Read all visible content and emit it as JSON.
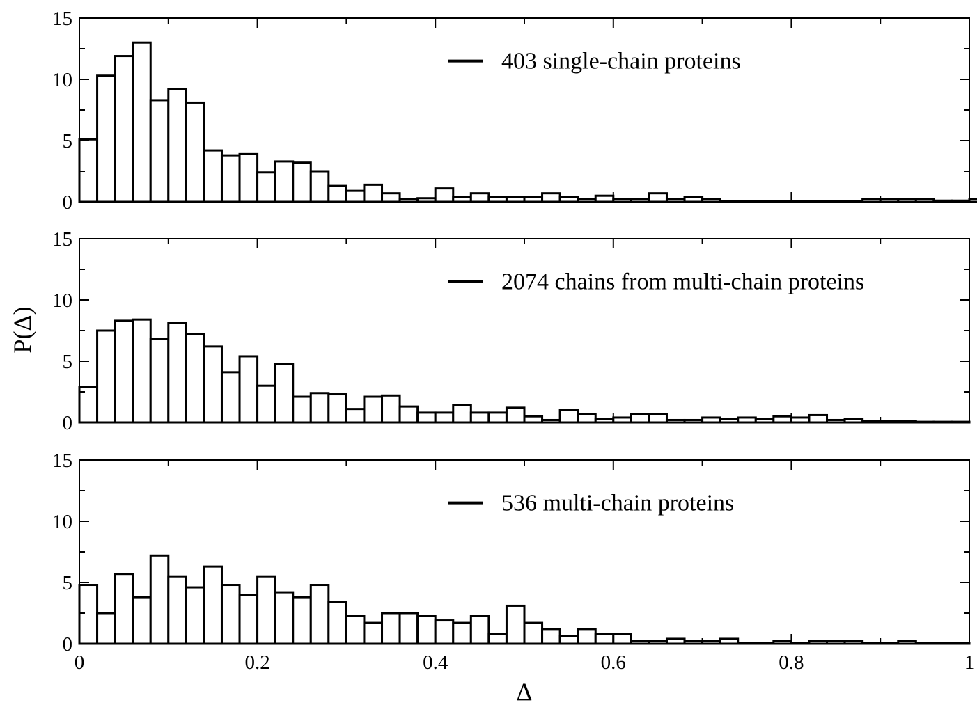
{
  "chart_data": [
    {
      "type": "bar",
      "bin_width": 0.02,
      "xlim": [
        0,
        1
      ],
      "ylim": [
        0,
        15
      ],
      "yticks": [
        "0",
        "5",
        "10",
        "15"
      ],
      "series": [
        {
          "name": "403 single-chain proteins"
        }
      ],
      "values": [
        5.1,
        10.3,
        11.9,
        13.0,
        8.3,
        9.2,
        8.1,
        4.2,
        3.8,
        3.9,
        2.4,
        3.3,
        3.2,
        2.5,
        1.3,
        0.9,
        1.4,
        0.7,
        0.2,
        0.3,
        1.1,
        0.4,
        0.7,
        0.4,
        0.4,
        0.4,
        0.7,
        0.4,
        0.2,
        0.5,
        0.2,
        0.2,
        0.7,
        0.2,
        0.4,
        0.2,
        0.05,
        0.05,
        0.05,
        0.05,
        0.05,
        0.05,
        0.05,
        0.05,
        0.2,
        0.2,
        0.2,
        0.2,
        0.1,
        0.1,
        0.2,
        0.1,
        0.1,
        0.1
      ]
    },
    {
      "type": "bar",
      "bin_width": 0.02,
      "xlim": [
        0,
        1
      ],
      "ylim": [
        0,
        15
      ],
      "yticks": [
        "0",
        "5",
        "10",
        "15"
      ],
      "series": [
        {
          "name": "2074 chains from multi-chain proteins"
        }
      ],
      "values": [
        2.9,
        7.5,
        8.3,
        8.4,
        6.8,
        8.1,
        7.2,
        6.2,
        4.1,
        5.4,
        3.0,
        4.8,
        2.1,
        2.4,
        2.3,
        1.1,
        2.1,
        2.2,
        1.3,
        0.8,
        0.8,
        1.4,
        0.8,
        0.8,
        1.2,
        0.5,
        0.2,
        1.0,
        0.7,
        0.3,
        0.4,
        0.7,
        0.7,
        0.2,
        0.2,
        0.4,
        0.3,
        0.4,
        0.3,
        0.5,
        0.4,
        0.6,
        0.2,
        0.3,
        0.1,
        0.1,
        0.1,
        0.05,
        0.05,
        0.05
      ]
    },
    {
      "type": "bar",
      "bin_width": 0.02,
      "xlim": [
        0,
        1
      ],
      "ylim": [
        0,
        15
      ],
      "xticks": [
        "0",
        "0.2",
        "0.4",
        "0.6",
        "0.8",
        "1"
      ],
      "yticks": [
        "0",
        "5",
        "10",
        "15"
      ],
      "xlabel": "Δ",
      "series": [
        {
          "name": "536 multi-chain proteins"
        }
      ],
      "values": [
        4.8,
        2.5,
        5.7,
        3.8,
        7.2,
        5.5,
        4.6,
        6.3,
        4.8,
        4.0,
        5.5,
        4.2,
        3.8,
        4.8,
        3.4,
        2.3,
        1.7,
        2.5,
        2.5,
        2.3,
        1.9,
        1.7,
        2.3,
        0.8,
        3.1,
        1.7,
        1.2,
        0.6,
        1.2,
        0.8,
        0.8,
        0.2,
        0.2,
        0.4,
        0.2,
        0.2,
        0.4,
        0.05,
        0.05,
        0.2,
        0.05,
        0.2,
        0.2,
        0.2,
        0.05,
        0.05,
        0.2,
        0.05,
        0.05,
        0.05
      ]
    }
  ],
  "shared_ylabel": "P(Δ)"
}
